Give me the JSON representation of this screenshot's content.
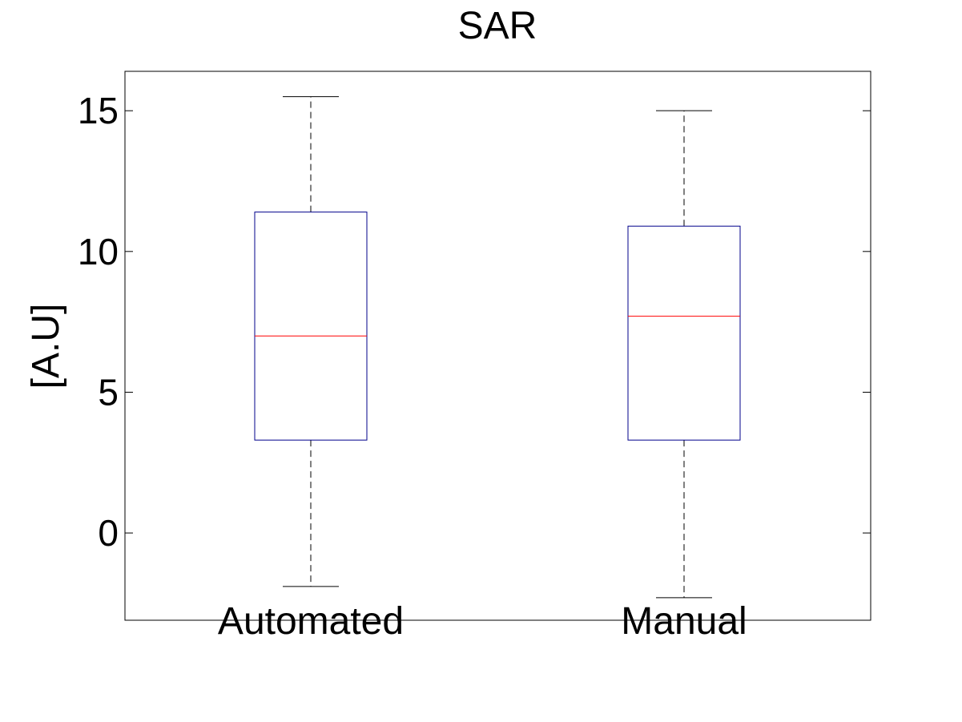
{
  "chart_data": {
    "type": "boxplot",
    "title": "SAR",
    "xlabel": "",
    "ylabel": "[A.U]",
    "ylim": [
      -3.1,
      16.4
    ],
    "yticks": [
      0,
      5,
      10,
      15
    ],
    "grid": false,
    "categories": [
      "Automated",
      "Manual"
    ],
    "boxes": [
      {
        "category": "Automated",
        "min": -1.9,
        "q1": 3.3,
        "median": 7.0,
        "q3": 11.4,
        "max": 15.5
      },
      {
        "category": "Manual",
        "min": -2.3,
        "q1": 3.3,
        "median": 7.7,
        "q3": 10.9,
        "max": 15.0
      }
    ],
    "colors": {
      "box": "#00008b",
      "median": "#ff0000",
      "whisker": "#000000",
      "axes": "#000000"
    }
  }
}
